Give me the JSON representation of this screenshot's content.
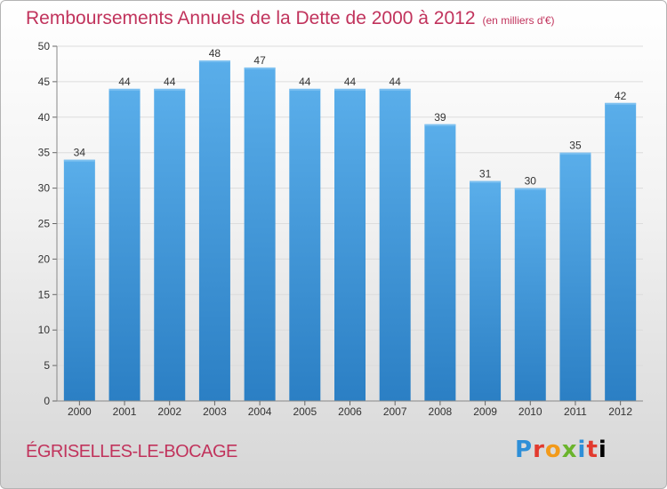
{
  "header": {
    "title": "Remboursements Annuels de la Dette de 2000 à 2012",
    "subtitle": "(en milliers d'€)"
  },
  "footer": {
    "location": "ÉGRISELLES-LE-BOCAGE",
    "logo": "Proxiti"
  },
  "colors": {
    "title": "#c1335c",
    "bar_top": "#5aaeea",
    "bar_bottom": "#2b7fc4",
    "grid": "#dddddd"
  },
  "chart_data": {
    "type": "bar",
    "title": "Remboursements Annuels de la Dette de 2000 à 2012",
    "subtitle": "(en milliers d'€)",
    "xlabel": "",
    "ylabel": "",
    "categories": [
      "2000",
      "2001",
      "2002",
      "2003",
      "2004",
      "2005",
      "2006",
      "2007",
      "2008",
      "2009",
      "2010",
      "2011",
      "2012"
    ],
    "values": [
      34,
      44,
      44,
      48,
      47,
      44,
      44,
      44,
      39,
      31,
      30,
      35,
      42
    ],
    "ylim": [
      0,
      50
    ],
    "yticks": [
      0,
      5,
      10,
      15,
      20,
      25,
      30,
      35,
      40,
      45,
      50
    ],
    "grid": true,
    "data_labels": true
  }
}
